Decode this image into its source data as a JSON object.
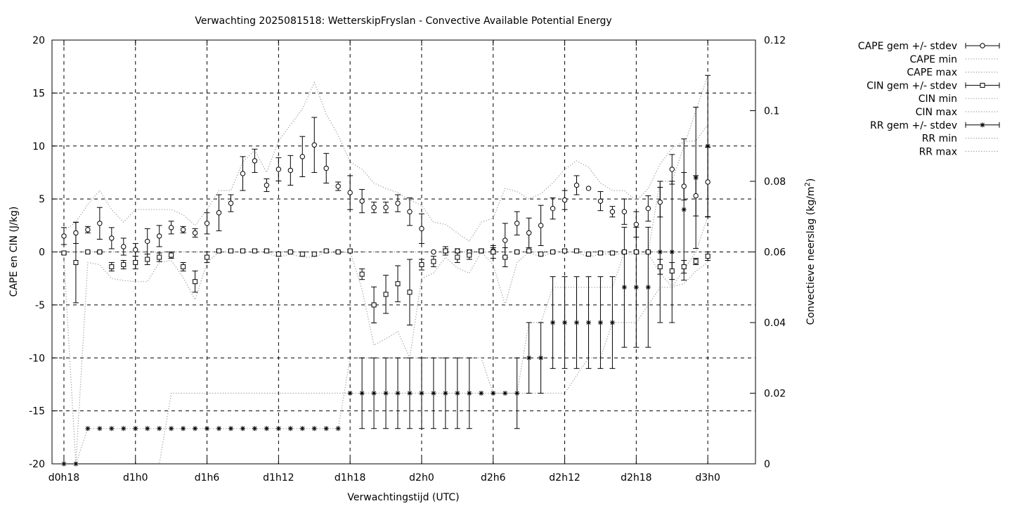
{
  "chart_data": {
    "type": "line",
    "title": "Verwachting 2025081518: WetterskipFryslan - Convective Available Potential Energy",
    "xlabel": "Verwachtingstijd (UTC)",
    "ylabel": "CAPE en CIN (J/kg)",
    "y2label_main": "Convectieve neerslag (kg/m",
    "y2label_sup": "2",
    "y2label_end": ")",
    "grid": true,
    "legend_position": "top-right outside",
    "ylim": [
      -20,
      20
    ],
    "y2lim": [
      0,
      0.12
    ],
    "xlim_hours": [
      -1,
      58
    ],
    "x_ticks": [
      {
        "h": 0,
        "label": "d0h18"
      },
      {
        "h": 6,
        "label": "d1h0"
      },
      {
        "h": 12,
        "label": "d1h6"
      },
      {
        "h": 18,
        "label": "d1h12"
      },
      {
        "h": 24,
        "label": "d1h18"
      },
      {
        "h": 30,
        "label": "d2h0"
      },
      {
        "h": 36,
        "label": "d2h6"
      },
      {
        "h": 42,
        "label": "d2h12"
      },
      {
        "h": 48,
        "label": "d2h18"
      },
      {
        "h": 54,
        "label": "d3h0"
      }
    ],
    "y_ticks": [
      {
        "v": 20,
        "label": "20"
      },
      {
        "v": 15,
        "label": "15"
      },
      {
        "v": 10,
        "label": "10"
      },
      {
        "v": 5,
        "label": "5"
      },
      {
        "v": 0,
        "label": "0"
      },
      {
        "v": -5,
        "label": "-5"
      },
      {
        "v": -10,
        "label": "-10"
      },
      {
        "v": -15,
        "label": "-15"
      },
      {
        "v": -20,
        "label": "-20"
      }
    ],
    "y2_ticks": [
      {
        "v": 0.12,
        "label": "0.12"
      },
      {
        "v": 0.1,
        "label": "0.1"
      },
      {
        "v": 0.08,
        "label": "0.08"
      },
      {
        "v": 0.06,
        "label": "0.06"
      },
      {
        "v": 0.04,
        "label": "0.04"
      },
      {
        "v": 0.02,
        "label": "0.02"
      },
      {
        "v": 0,
        "label": "0"
      }
    ],
    "legend": [
      {
        "key": "cape",
        "label": "CAPE gem +/- stdev"
      },
      {
        "key": "cape_min",
        "label": "CAPE min"
      },
      {
        "key": "cape_max",
        "label": "CAPE max"
      },
      {
        "key": "cin",
        "label": "CIN gem +/- stdev"
      },
      {
        "key": "cin_min",
        "label": "CIN min"
      },
      {
        "key": "cin_max",
        "label": "CIN max"
      },
      {
        "key": "rr",
        "label": "RR gem +/- stdev"
      },
      {
        "key": "rr_min",
        "label": "RR min"
      },
      {
        "key": "rr_max",
        "label": "RR max"
      }
    ],
    "series": {
      "cape": {
        "x": [
          0,
          1,
          2,
          3,
          4,
          5,
          6,
          7,
          8,
          9,
          10,
          11,
          12,
          13,
          14,
          15,
          16,
          17,
          18,
          19,
          20,
          21,
          22,
          23,
          24,
          25,
          26,
          27,
          28,
          29,
          30,
          31,
          32,
          33,
          34,
          35,
          36,
          37,
          38,
          39,
          40,
          41,
          42,
          43,
          44,
          45,
          46,
          47,
          48,
          49,
          50,
          51,
          52,
          53,
          54
        ],
        "y": [
          1.5,
          1.8,
          2.1,
          2.7,
          1.3,
          0.5,
          0.2,
          1.0,
          1.5,
          2.3,
          2.1,
          1.8,
          2.7,
          3.7,
          4.6,
          7.4,
          8.6,
          6.3,
          7.8,
          7.7,
          9.0,
          10.1,
          7.9,
          6.2,
          5.6,
          4.8,
          4.2,
          4.2,
          4.6,
          3.8,
          2.2,
          0,
          0.1,
          0.1,
          0,
          0.1,
          0.1,
          1.1,
          2.7,
          1.8,
          2.5,
          4.1,
          4.9,
          6.3,
          6.0,
          4.8,
          3.8,
          3.8,
          2.6,
          4.1,
          4.7,
          7.8,
          6.2,
          5.3,
          6.6
        ],
        "err": [
          0.8,
          1.0,
          0.3,
          1.5,
          1.0,
          0.8,
          0.6,
          1.2,
          1.0,
          0.6,
          0.3,
          0.4,
          1.0,
          1.7,
          0.8,
          1.6,
          1.1,
          0.6,
          1.1,
          1.4,
          1.9,
          2.6,
          1.4,
          0.4,
          1.6,
          1.1,
          0.5,
          0.5,
          0.8,
          1.3,
          1.4,
          0,
          0.2,
          0.2,
          0.2,
          0.2,
          0.3,
          1.6,
          1.1,
          1.4,
          1.9,
          1.0,
          0.9,
          0.9,
          0,
          0.9,
          0.5,
          1.2,
          1.2,
          1.2,
          1.4,
          1.4,
          1.3,
          1.9,
          3.3
        ]
      },
      "cin": {
        "x": [
          0,
          1,
          2,
          3,
          4,
          5,
          6,
          7,
          8,
          9,
          10,
          11,
          12,
          13,
          14,
          15,
          16,
          17,
          18,
          19,
          20,
          21,
          22,
          23,
          24,
          25,
          26,
          27,
          28,
          29,
          30,
          31,
          32,
          33,
          34,
          35,
          36,
          37,
          38,
          39,
          40,
          41,
          42,
          43,
          44,
          45,
          46,
          47,
          48,
          49,
          50,
          51,
          52,
          53,
          54
        ],
        "y": [
          -0.1,
          -1.0,
          0,
          0,
          -1.4,
          -1.2,
          -1.0,
          -0.7,
          -0.5,
          -0.3,
          -1.4,
          -2.8,
          -0.5,
          0.1,
          0.1,
          0.1,
          0.1,
          0.1,
          -0.2,
          0,
          -0.2,
          -0.2,
          0.1,
          0,
          0.1,
          -2.1,
          -5.0,
          -4.0,
          -3.0,
          -3.8,
          -1.2,
          -0.9,
          0.1,
          -0.5,
          -0.3,
          0.1,
          0,
          -0.5,
          0,
          0.1,
          -0.2,
          0,
          0.1,
          0.1,
          -0.2,
          -0.1,
          -0.1,
          0,
          0,
          0,
          -1.4,
          -1.8,
          -1.4,
          -0.9,
          -0.4
        ],
        "err": [
          0.1,
          3.8,
          0.1,
          0.1,
          0.4,
          0.4,
          0.6,
          0.5,
          0.4,
          0.3,
          0.4,
          1.0,
          0.5,
          0.1,
          0.1,
          0.1,
          0.1,
          0.1,
          0.2,
          0.1,
          0.2,
          0.2,
          0.1,
          0.1,
          0.1,
          0.5,
          1.7,
          1.8,
          1.7,
          3.1,
          0.5,
          0.5,
          0.4,
          0.5,
          0.4,
          0.1,
          0.6,
          0.9,
          0.1,
          0.1,
          0.1,
          0.1,
          0.1,
          0.1,
          0.1,
          0.1,
          0.1,
          0.1,
          0.1,
          0.1,
          0.7,
          0.8,
          0.6,
          0.3,
          0.4
        ]
      },
      "rr": {
        "x": [
          0,
          1,
          2,
          3,
          4,
          5,
          6,
          7,
          8,
          9,
          10,
          11,
          12,
          13,
          14,
          15,
          16,
          17,
          18,
          19,
          20,
          21,
          22,
          23,
          24,
          25,
          26,
          27,
          28,
          29,
          30,
          31,
          32,
          33,
          34,
          35,
          36,
          37,
          38,
          39,
          40,
          41,
          42,
          43,
          44,
          45,
          46,
          47,
          48,
          49,
          50,
          51,
          52,
          53,
          54
        ],
        "y": [
          0,
          0,
          0.01,
          0.01,
          0.01,
          0.01,
          0.01,
          0.01,
          0.01,
          0.01,
          0.01,
          0.01,
          0.01,
          0.01,
          0.01,
          0.01,
          0.01,
          0.01,
          0.01,
          0.01,
          0.01,
          0.01,
          0.01,
          0.01,
          0.02,
          0.02,
          0.02,
          0.02,
          0.02,
          0.02,
          0.02,
          0.02,
          0.02,
          0.02,
          0.02,
          0.02,
          0.02,
          0.02,
          0.02,
          0.03,
          0.03,
          0.04,
          0.04,
          0.04,
          0.04,
          0.04,
          0.04,
          0.05,
          0.05,
          0.05,
          0.06,
          0.06,
          0.072,
          0.081,
          0.09
        ],
        "err": [
          0,
          0,
          0,
          0,
          0,
          0,
          0,
          0,
          0,
          0,
          0,
          0,
          0,
          0,
          0,
          0,
          0,
          0,
          0,
          0,
          0,
          0,
          0,
          0,
          0,
          0.01,
          0.01,
          0.01,
          0.01,
          0.01,
          0.01,
          0.01,
          0.01,
          0.01,
          0.01,
          0,
          0,
          0,
          0.01,
          0.01,
          0.01,
          0.013,
          0.013,
          0.013,
          0.013,
          0.013,
          0.013,
          0.017,
          0.017,
          0.017,
          0.02,
          0.02,
          0.02,
          0.02,
          0.02
        ]
      },
      "rr_min": {
        "x": [
          0,
          7,
          8,
          9,
          24,
          25,
          35,
          36,
          37,
          38,
          39,
          40,
          41,
          42,
          43,
          44,
          45,
          46,
          47,
          48,
          49,
          50,
          51,
          52,
          53,
          54
        ],
        "y": [
          0,
          0,
          0,
          0.02,
          0.02,
          0.02,
          0.02,
          0.02,
          0.02,
          0.02,
          0.02,
          0.02,
          0.02,
          0.02,
          0.025,
          0.03,
          0.03,
          0.04,
          0.04,
          0.04,
          0.045,
          0.05,
          0.05,
          0.055,
          0.06,
          0.07
        ]
      },
      "rr_max": {
        "x": [
          0,
          1,
          2,
          3,
          4,
          5,
          6,
          7,
          8,
          9,
          10,
          11,
          12,
          13,
          14,
          15,
          16,
          17,
          18,
          19,
          20,
          21,
          22,
          23,
          24,
          25,
          26,
          27,
          28,
          29,
          30,
          31,
          32,
          33,
          34,
          35,
          36,
          37,
          38,
          39,
          40,
          41,
          42,
          43,
          44,
          45,
          46,
          47,
          48,
          49,
          50,
          51,
          52,
          53,
          54
        ],
        "y": [
          0,
          0,
          0.01,
          0.01,
          0.01,
          0.01,
          0.01,
          0.01,
          0.01,
          0.01,
          0.01,
          0.01,
          0.01,
          0.01,
          0.01,
          0.01,
          0.01,
          0.01,
          0.01,
          0.01,
          0.01,
          0.01,
          0.01,
          0.01,
          0.03,
          0.03,
          0.03,
          0.03,
          0.03,
          0.03,
          0.03,
          0.03,
          0.03,
          0.03,
          0.03,
          0.03,
          0.02,
          0.02,
          0.02,
          0.04,
          0.04,
          0.05,
          0.05,
          0.05,
          0.05,
          0.05,
          0.05,
          0.06,
          0.06,
          0.06,
          0.08,
          0.08,
          0.09,
          0.1,
          0.11
        ]
      },
      "cape_min": {
        "x": [
          0,
          1,
          2,
          3,
          4,
          5,
          6,
          7,
          8,
          9,
          10,
          11,
          12,
          13,
          14,
          15,
          16,
          17,
          18,
          19,
          20,
          21,
          22,
          23,
          24,
          25,
          26,
          27,
          28,
          29,
          30,
          31,
          32,
          33,
          34,
          35,
          36,
          37,
          38,
          39,
          40,
          41,
          42,
          43,
          44,
          45,
          46,
          47,
          48,
          49,
          50,
          51,
          52,
          53,
          54
        ],
        "y": [
          0,
          0,
          0,
          0,
          0,
          0,
          0,
          0,
          0,
          0,
          0,
          0,
          0,
          0,
          0,
          0,
          0,
          0,
          0,
          0,
          0,
          0,
          0,
          0,
          0,
          0,
          0,
          0,
          0,
          0,
          0,
          0,
          0,
          0,
          0,
          0,
          0,
          0,
          0,
          0,
          0,
          0,
          0,
          0,
          0,
          0,
          0,
          0,
          0,
          0,
          0,
          0,
          0,
          0,
          0
        ]
      },
      "cape_max": {
        "x": [
          0,
          1,
          2,
          3,
          4,
          5,
          6,
          7,
          8,
          9,
          10,
          11,
          12,
          13,
          14,
          15,
          16,
          17,
          18,
          19,
          20,
          21,
          22,
          23,
          24,
          25,
          26,
          27,
          28,
          29,
          30,
          31,
          32,
          33,
          34,
          35,
          36,
          37,
          38,
          39,
          40,
          41,
          42,
          43,
          44,
          45,
          46,
          47,
          48,
          49,
          50,
          51,
          52,
          53,
          54
        ],
        "y": [
          2.0,
          2.8,
          4.5,
          5.8,
          4.0,
          2.8,
          4.0,
          4.0,
          4.0,
          4.0,
          3.5,
          2.5,
          4.0,
          5.8,
          5.8,
          8.5,
          9.6,
          7.5,
          10.5,
          12.0,
          13.5,
          16.0,
          13.0,
          11.0,
          8.5,
          7.8,
          6.5,
          6.0,
          5.6,
          4.9,
          4.4,
          2.8,
          2.6,
          1.8,
          1.0,
          2.8,
          3.2,
          6.0,
          5.7,
          5.0,
          5.5,
          6.5,
          7.8,
          8.6,
          8.0,
          6.5,
          5.8,
          5.8,
          4.8,
          6.0,
          8.3,
          9.8,
          10.4,
          10.5,
          12.0
        ]
      },
      "cin_min": {
        "x": [
          0,
          1,
          2,
          3,
          4,
          5,
          6,
          7,
          8,
          9,
          10,
          11,
          12,
          13,
          14,
          15,
          16,
          17,
          18,
          19,
          20,
          21,
          22,
          23,
          24,
          25,
          26,
          27,
          28,
          29,
          30,
          31,
          32,
          33,
          34,
          35,
          36,
          37,
          38,
          39,
          40,
          41,
          42,
          43,
          44,
          45,
          46,
          47,
          48,
          49,
          50,
          51,
          52,
          53,
          54
        ],
        "y": [
          -0.5,
          -20,
          -1.0,
          -1.2,
          -2.5,
          -2.7,
          -2.8,
          -2.8,
          -1.0,
          -0.8,
          -2.4,
          -4.5,
          -1.0,
          0,
          0,
          0,
          0,
          0,
          -0.5,
          -0.2,
          -0.5,
          -0.5,
          0,
          -0.1,
          0,
          -3.5,
          -8.8,
          -8.2,
          -7.5,
          -10.0,
          -2.5,
          -2.0,
          -0.5,
          -1.5,
          -2.0,
          0,
          -1.2,
          -5.0,
          -1.0,
          0,
          -0.5,
          0,
          0,
          0,
          -0.5,
          -0.2,
          -0.2,
          -0.2,
          -0.2,
          -0.2,
          -2.0,
          -3.3,
          -3.0,
          -1.8,
          -1.0
        ]
      }
    }
  }
}
